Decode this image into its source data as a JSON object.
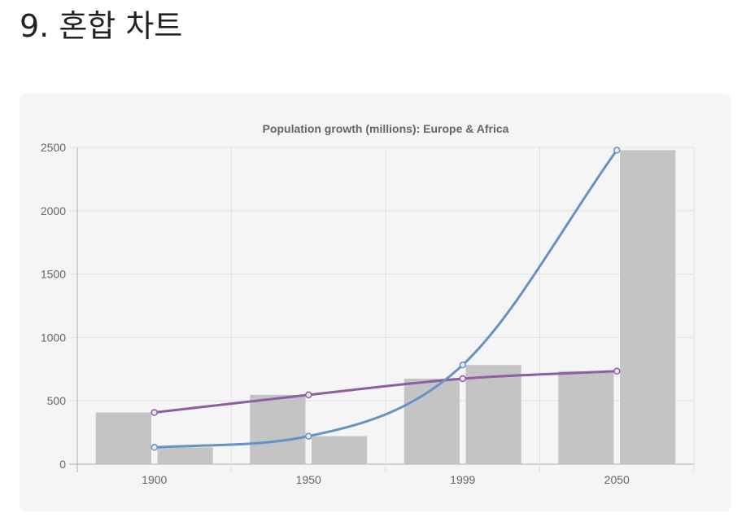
{
  "page": {
    "title": "9. 혼합 차트"
  },
  "chart_data": {
    "type": "bar",
    "title": "Population growth (millions): Europe & Africa",
    "categories": [
      "1900",
      "1950",
      "1999",
      "2050"
    ],
    "ylim": [
      0,
      2500
    ],
    "y_ticks": [
      0,
      500,
      1000,
      1500,
      2000,
      2500
    ],
    "grid": true,
    "bar_series": [
      {
        "values": [
          408,
          547,
          675,
          734
        ],
        "color": "#c4c4c4"
      },
      {
        "values": [
          133,
          221,
          783,
          2478
        ],
        "color": "#c4c4c4"
      }
    ],
    "line_series": [
      {
        "values": [
          408,
          547,
          675,
          734
        ],
        "color": "#8e5ea2"
      },
      {
        "values": [
          133,
          221,
          783,
          2478
        ],
        "color": "#6693c6"
      }
    ]
  }
}
